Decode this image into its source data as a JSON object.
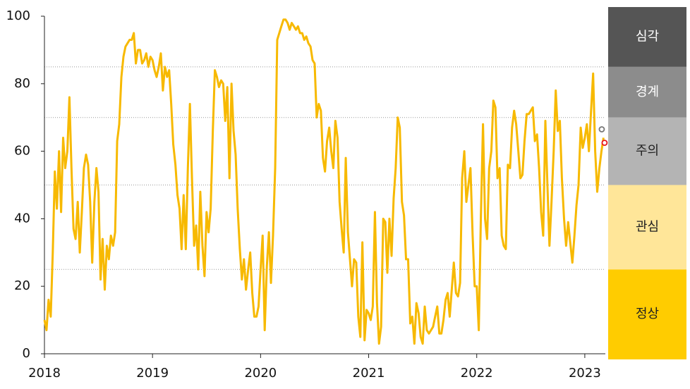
{
  "chart_data": {
    "type": "line",
    "x": [
      2018.0,
      2018.019,
      2018.038,
      2018.058,
      2018.077,
      2018.096,
      2018.115,
      2018.135,
      2018.154,
      2018.173,
      2018.192,
      2018.212,
      2018.231,
      2018.25,
      2018.269,
      2018.288,
      2018.308,
      2018.327,
      2018.346,
      2018.365,
      2018.385,
      2018.404,
      2018.423,
      2018.442,
      2018.462,
      2018.481,
      2018.5,
      2018.519,
      2018.538,
      2018.558,
      2018.577,
      2018.596,
      2018.615,
      2018.635,
      2018.654,
      2018.673,
      2018.692,
      2018.712,
      2018.731,
      2018.75,
      2018.769,
      2018.788,
      2018.808,
      2018.827,
      2018.846,
      2018.865,
      2018.885,
      2018.904,
      2018.923,
      2018.942,
      2018.962,
      2018.981,
      2019.0,
      2019.019,
      2019.038,
      2019.058,
      2019.077,
      2019.096,
      2019.115,
      2019.135,
      2019.154,
      2019.173,
      2019.192,
      2019.212,
      2019.231,
      2019.25,
      2019.269,
      2019.288,
      2019.308,
      2019.327,
      2019.346,
      2019.365,
      2019.385,
      2019.404,
      2019.423,
      2019.442,
      2019.462,
      2019.481,
      2019.5,
      2019.519,
      2019.538,
      2019.558,
      2019.577,
      2019.596,
      2019.615,
      2019.635,
      2019.654,
      2019.673,
      2019.692,
      2019.712,
      2019.731,
      2019.75,
      2019.769,
      2019.788,
      2019.808,
      2019.827,
      2019.846,
      2019.865,
      2019.885,
      2019.904,
      2019.923,
      2019.942,
      2019.962,
      2019.981,
      2020.0,
      2020.019,
      2020.038,
      2020.058,
      2020.077,
      2020.096,
      2020.115,
      2020.135,
      2020.154,
      2020.173,
      2020.192,
      2020.212,
      2020.231,
      2020.25,
      2020.269,
      2020.288,
      2020.308,
      2020.327,
      2020.346,
      2020.365,
      2020.385,
      2020.404,
      2020.423,
      2020.442,
      2020.462,
      2020.481,
      2020.5,
      2020.519,
      2020.538,
      2020.558,
      2020.577,
      2020.596,
      2020.615,
      2020.635,
      2020.654,
      2020.673,
      2020.692,
      2020.712,
      2020.731,
      2020.75,
      2020.769,
      2020.788,
      2020.808,
      2020.827,
      2020.846,
      2020.865,
      2020.885,
      2020.904,
      2020.923,
      2020.942,
      2020.962,
      2020.981,
      2021.0,
      2021.019,
      2021.038,
      2021.058,
      2021.077,
      2021.096,
      2021.115,
      2021.135,
      2021.154,
      2021.173,
      2021.192,
      2021.212,
      2021.231,
      2021.25,
      2021.269,
      2021.288,
      2021.308,
      2021.327,
      2021.346,
      2021.365,
      2021.385,
      2021.404,
      2021.423,
      2021.442,
      2021.462,
      2021.481,
      2021.5,
      2021.519,
      2021.538,
      2021.558,
      2021.577,
      2021.596,
      2021.615,
      2021.635,
      2021.654,
      2021.673,
      2021.692,
      2021.712,
      2021.731,
      2021.75,
      2021.769,
      2021.788,
      2021.808,
      2021.827,
      2021.846,
      2021.865,
      2021.885,
      2021.904,
      2021.923,
      2021.942,
      2021.962,
      2021.981,
      2022.0,
      2022.019,
      2022.038,
      2022.058,
      2022.077,
      2022.096,
      2022.115,
      2022.135,
      2022.154,
      2022.173,
      2022.192,
      2022.212,
      2022.231,
      2022.25,
      2022.269,
      2022.288,
      2022.308,
      2022.327,
      2022.346,
      2022.365,
      2022.385,
      2022.404,
      2022.423,
      2022.442,
      2022.462,
      2022.481,
      2022.5,
      2022.519,
      2022.538,
      2022.558,
      2022.577,
      2022.596,
      2022.615,
      2022.635,
      2022.654,
      2022.673,
      2022.692,
      2022.712,
      2022.731,
      2022.75,
      2022.769,
      2022.788,
      2022.808,
      2022.827,
      2022.846,
      2022.865,
      2022.885,
      2022.904,
      2022.923,
      2022.942,
      2022.962,
      2022.981,
      2023.0,
      2023.019,
      2023.038,
      2023.058,
      2023.077,
      2023.096,
      2023.115,
      2023.135,
      2023.154,
      2023.173
    ],
    "series": [
      {
        "color": "#f7b900",
        "values": [
          10,
          7,
          16,
          11,
          30,
          54,
          43,
          60,
          42,
          64,
          55,
          60,
          76,
          55,
          37,
          34,
          45,
          30,
          42,
          55,
          59,
          56,
          45,
          27,
          45,
          55,
          48,
          22,
          34,
          19,
          32,
          28,
          35,
          32,
          36,
          63,
          68,
          82,
          88,
          91,
          92,
          93,
          93,
          95,
          86,
          90,
          90,
          86,
          87,
          89,
          85,
          88,
          87,
          84,
          82,
          85,
          89,
          78,
          85,
          82,
          84,
          74,
          62,
          56,
          47,
          43,
          31,
          47,
          31,
          55,
          74,
          52,
          32,
          38,
          25,
          48,
          32,
          23,
          42,
          36,
          43,
          66,
          84,
          82,
          79,
          81,
          80,
          69,
          79,
          52,
          80,
          66,
          59,
          43,
          31,
          22,
          28,
          19,
          25,
          30,
          18,
          11,
          11,
          14,
          25,
          35,
          7,
          26,
          36,
          21,
          35,
          55,
          93,
          95,
          97,
          99,
          99,
          98,
          96,
          98,
          97,
          96,
          97,
          95,
          95,
          93,
          94,
          92,
          91,
          87,
          86,
          70,
          74,
          72,
          58,
          54,
          63,
          67,
          60,
          55,
          69,
          64,
          45,
          37,
          30,
          58,
          36,
          28,
          20,
          28,
          27,
          11,
          5,
          33,
          4,
          13,
          12,
          10,
          14,
          42,
          15,
          3,
          8,
          40,
          39,
          24,
          40,
          29,
          46,
          55,
          70,
          67,
          45,
          41,
          28,
          28,
          9,
          11,
          3,
          15,
          12,
          5,
          3,
          14,
          7,
          6,
          7,
          8,
          11,
          14,
          6,
          6,
          10,
          16,
          18,
          11,
          19,
          27,
          18,
          17,
          21,
          52,
          60,
          45,
          50,
          55,
          35,
          20,
          20,
          7,
          40,
          68,
          40,
          34,
          55,
          60,
          75,
          73,
          52,
          55,
          35,
          32,
          31,
          56,
          55,
          67,
          72,
          68,
          60,
          52,
          53,
          63,
          71,
          71,
          72,
          73,
          63,
          65,
          55,
          42,
          35,
          69,
          50,
          32,
          45,
          60,
          78,
          66,
          69,
          52,
          40,
          32,
          39,
          33,
          27,
          35,
          44,
          50,
          67,
          61,
          64,
          68,
          60,
          72,
          83,
          60,
          48,
          55,
          60,
          64
        ]
      }
    ],
    "markers": [
      {
        "x": 2023.157,
        "value": 66.5,
        "color": "#777777"
      },
      {
        "x": 2023.183,
        "value": 62.5,
        "color": "#e8141e"
      }
    ],
    "bands": [
      {
        "label": "정상",
        "from": 0,
        "to": 25,
        "color": "#ffcc00",
        "text_color": "#222222"
      },
      {
        "label": "관심",
        "from": 25,
        "to": 50,
        "color": "#ffe699",
        "text_color": "#222222"
      },
      {
        "label": "주의",
        "from": 50,
        "to": 70,
        "color": "#b4b4b4",
        "text_color": "#222222"
      },
      {
        "label": "경계",
        "from": 70,
        "to": 85,
        "color": "#8c8c8c",
        "text_color": "#ffffff"
      },
      {
        "label": "심각",
        "from": 85,
        "to": 100,
        "color": "#555555",
        "text_color": "#ffffff"
      }
    ],
    "xlim": [
      2018,
      2023.19
    ],
    "xticks": [
      2018,
      2019,
      2020,
      2021,
      2022,
      2023
    ],
    "ylim": [
      0,
      100
    ],
    "yticks": [
      0,
      20,
      40,
      60,
      80,
      100
    ],
    "grid": true
  }
}
